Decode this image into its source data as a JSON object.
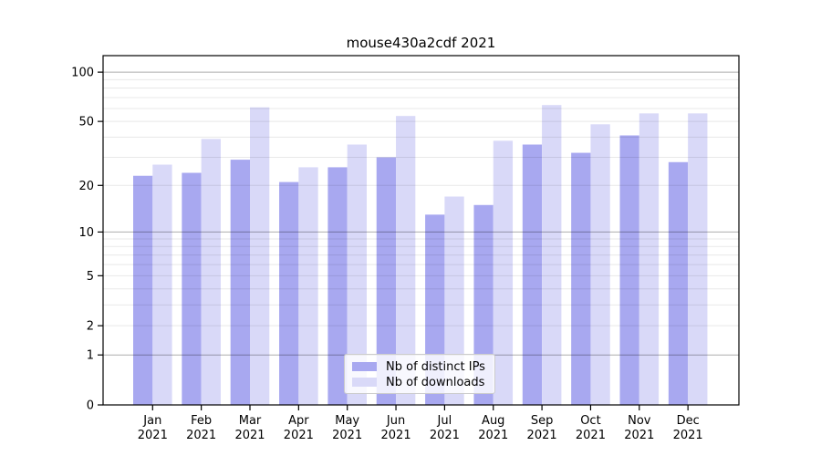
{
  "title": "mouse430a2cdf 2021",
  "chart_data": {
    "type": "bar",
    "title": "mouse430a2cdf 2021",
    "categories": [
      "Jan 2021",
      "Feb 2021",
      "Mar 2021",
      "Apr 2021",
      "May 2021",
      "Jun 2021",
      "Jul 2021",
      "Aug 2021",
      "Sep 2021",
      "Oct 2021",
      "Nov 2021",
      "Dec 2021"
    ],
    "series": [
      {
        "name": "Nb of distinct IPs",
        "color": "#a8a8f0",
        "values": [
          23,
          24,
          29,
          21,
          26,
          30,
          13,
          15,
          36,
          32,
          41,
          28
        ]
      },
      {
        "name": "Nb of downloads",
        "color": "#d9d9f8",
        "values": [
          27,
          39,
          61,
          26,
          36,
          54,
          17,
          38,
          63,
          48,
          56,
          56
        ]
      }
    ],
    "xlabel": "",
    "ylabel": "",
    "yscale": "log1p",
    "ylim": [
      0,
      126
    ],
    "y_ticks": [
      0,
      1,
      2,
      5,
      10,
      20,
      50,
      100
    ],
    "y_major_gridlines": [
      1,
      10,
      100
    ],
    "y_minor_gridlines": [
      2,
      3,
      4,
      5,
      6,
      7,
      8,
      9,
      20,
      30,
      40,
      50,
      60,
      70,
      80,
      90
    ],
    "grid": "on",
    "legend_position": "lower center",
    "colors": {
      "axis": "#000000",
      "tick_label": "#000000",
      "grid_major": "rgba(0,0,0,0.32)",
      "grid_minor": "rgba(0,0,0,0.09)",
      "background": "#ffffff"
    }
  }
}
